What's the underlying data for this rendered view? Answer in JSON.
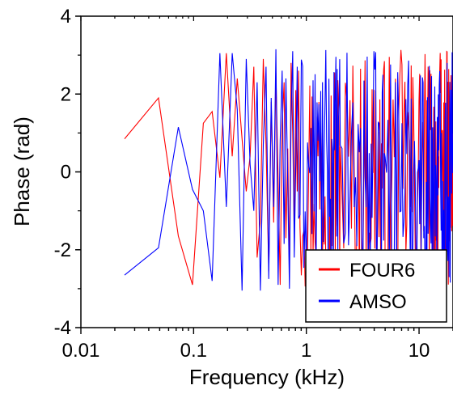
{
  "chart_data": {
    "type": "line",
    "title": "",
    "xlabel": "Frequency (kHz)",
    "ylabel": "Phase (rad)",
    "xscale": "log",
    "xlim": [
      0.01,
      20
    ],
    "ylim": [
      -4,
      4
    ],
    "xticks": [
      {
        "value": 0.01,
        "label": "0.01"
      },
      {
        "value": 0.1,
        "label": "0.1"
      },
      {
        "value": 1,
        "label": "1"
      },
      {
        "value": 10,
        "label": "10"
      }
    ],
    "yticks": [
      {
        "value": 4,
        "label": "4"
      },
      {
        "value": 2,
        "label": "2"
      },
      {
        "value": 0,
        "label": "0"
      },
      {
        "value": -2,
        "label": "-2"
      },
      {
        "value": -4,
        "label": "-4"
      }
    ],
    "grid": false,
    "legend_position": "bottom-right",
    "series": [
      {
        "name": "FOUR6",
        "color": "#ff0000",
        "x": [
          0.0244,
          0.0488,
          0.0732,
          0.0977,
          0.122,
          0.146,
          0.171,
          0.195,
          0.22,
          0.244,
          0.269,
          0.293,
          0.317,
          0.342,
          0.366,
          0.391,
          0.415,
          0.439,
          0.464,
          0.488,
          0.513,
          0.537,
          0.562,
          0.586,
          0.61,
          0.635,
          0.659,
          0.684,
          0.708,
          0.732,
          0.757,
          0.781,
          0.806,
          0.83,
          0.854
        ],
        "values": [
          0.85,
          1.9,
          -1.65,
          -2.9,
          1.25,
          1.55,
          -0.15,
          3.05,
          0.4,
          2.4,
          0.85,
          -0.5,
          0.4,
          2.7,
          -2.2,
          -1.25,
          2.9,
          0.7,
          -2.55,
          1.8,
          -1.3,
          2.55,
          -0.2,
          -2.9,
          1.2,
          2.3,
          -1.7,
          0.6,
          -2.7,
          2.8,
          1.0,
          -1.6,
          2.1,
          -0.5,
          2.6
        ]
      },
      {
        "name": "AMSO",
        "color": "#0000ff",
        "x": [
          0.0244,
          0.0488,
          0.0732,
          0.0977,
          0.122,
          0.146,
          0.171,
          0.195,
          0.22,
          0.244,
          0.269,
          0.293,
          0.317,
          0.342,
          0.366,
          0.391,
          0.415,
          0.439,
          0.464,
          0.488,
          0.513,
          0.537,
          0.562,
          0.586,
          0.61,
          0.635,
          0.659,
          0.684,
          0.708,
          0.732,
          0.757,
          0.781,
          0.806,
          0.83,
          0.854
        ],
        "values": [
          -2.65,
          -1.95,
          1.15,
          -0.45,
          -1.0,
          -2.8,
          3.05,
          -0.9,
          3.05,
          1.6,
          -3.05,
          2.9,
          0.2,
          -1.0,
          2.3,
          -3.05,
          0.7,
          2.7,
          -2.75,
          1.9,
          -0.9,
          3.15,
          -2.9,
          0.8,
          2.6,
          -1.85,
          2.4,
          -0.3,
          -3.0,
          1.4,
          3.1,
          -2.2,
          0.2,
          2.7,
          -1.2
        ]
      }
    ]
  }
}
